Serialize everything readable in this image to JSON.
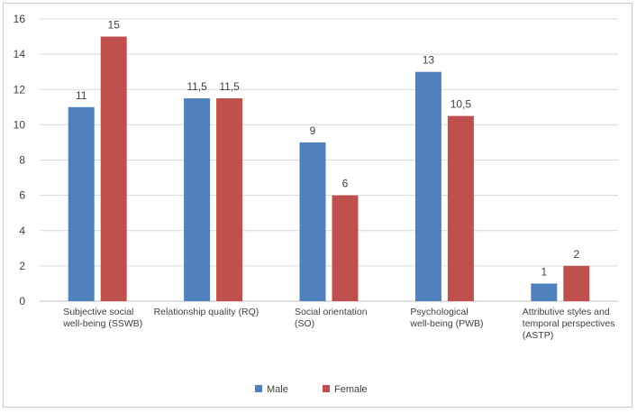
{
  "chart_data": {
    "type": "bar",
    "categories": [
      [
        "Subjective social",
        "well-being (SSWB)"
      ],
      [
        "Relationship quality (RQ)"
      ],
      [
        "Social orientation",
        "(SO)"
      ],
      [
        "Psychological",
        "well-being (PWB)"
      ],
      [
        "Attributive styles and",
        "temporal perspectives",
        "(ASTP)"
      ]
    ],
    "series": [
      {
        "name": "Male",
        "color": "#4f81bd",
        "values": [
          11,
          11.5,
          9,
          13,
          1
        ],
        "labels": [
          "11",
          "11,5",
          "9",
          "13",
          "1"
        ]
      },
      {
        "name": "Female",
        "color": "#c0504d",
        "values": [
          15,
          11.5,
          6,
          10.5,
          2
        ],
        "labels": [
          "15",
          "11,5",
          "6",
          "10,5",
          "2"
        ]
      }
    ],
    "ylim": [
      0,
      16
    ],
    "yticks": [
      0,
      2,
      4,
      6,
      8,
      10,
      12,
      14,
      16
    ],
    "grid": true,
    "legend": "bottom",
    "title": "",
    "xlabel": "",
    "ylabel": ""
  }
}
